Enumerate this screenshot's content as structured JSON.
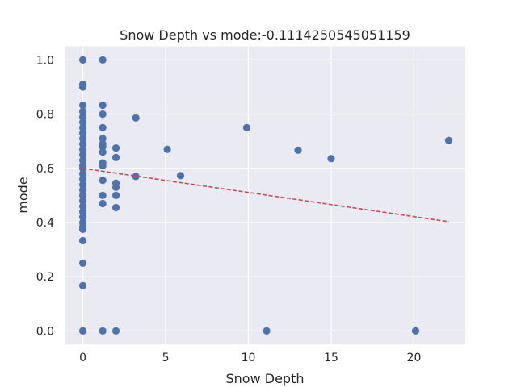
{
  "chart_data": {
    "type": "scatter",
    "title": "Snow Depth vs mode:-0.1114250545051159",
    "xlabel": "Snow Depth",
    "ylabel": "mode",
    "xlim": [
      -1.1,
      23.1
    ],
    "ylim": [
      -0.05,
      1.05
    ],
    "x_ticks": [
      0,
      5,
      10,
      15,
      20
    ],
    "x_tick_labels": [
      "0",
      "5",
      "10",
      "15",
      "20"
    ],
    "y_ticks": [
      0.0,
      0.2,
      0.4,
      0.6,
      0.8,
      1.0
    ],
    "y_tick_labels": [
      "0.0",
      "0.2",
      "0.4",
      "0.6",
      "0.8",
      "1.0"
    ],
    "grid": true,
    "background_color": "#eaeaf2",
    "grid_color": "#ffffff",
    "point_color": "#4c72b0",
    "trend_color": "#c44e52",
    "points": [
      {
        "x": 0,
        "y": 1.0
      },
      {
        "x": 0,
        "y": 0.91
      },
      {
        "x": 0,
        "y": 0.9
      },
      {
        "x": 0,
        "y": 0.833
      },
      {
        "x": 0,
        "y": 0.81
      },
      {
        "x": 0,
        "y": 0.79
      },
      {
        "x": 0,
        "y": 0.77
      },
      {
        "x": 0,
        "y": 0.75
      },
      {
        "x": 0,
        "y": 0.73
      },
      {
        "x": 0,
        "y": 0.71
      },
      {
        "x": 0,
        "y": 0.69
      },
      {
        "x": 0,
        "y": 0.67
      },
      {
        "x": 0,
        "y": 0.65
      },
      {
        "x": 0,
        "y": 0.63
      },
      {
        "x": 0,
        "y": 0.61
      },
      {
        "x": 0,
        "y": 0.6
      },
      {
        "x": 0,
        "y": 0.58
      },
      {
        "x": 0,
        "y": 0.56
      },
      {
        "x": 0,
        "y": 0.54
      },
      {
        "x": 0,
        "y": 0.52
      },
      {
        "x": 0,
        "y": 0.5
      },
      {
        "x": 0,
        "y": 0.48
      },
      {
        "x": 0,
        "y": 0.46
      },
      {
        "x": 0,
        "y": 0.44
      },
      {
        "x": 0,
        "y": 0.42
      },
      {
        "x": 0,
        "y": 0.4
      },
      {
        "x": 0,
        "y": 0.385
      },
      {
        "x": 0,
        "y": 0.375
      },
      {
        "x": 0,
        "y": 0.333
      },
      {
        "x": 0,
        "y": 0.25
      },
      {
        "x": 0,
        "y": 0.167
      },
      {
        "x": 0,
        "y": 0.0
      },
      {
        "x": 1.2,
        "y": 1.0
      },
      {
        "x": 1.2,
        "y": 0.833
      },
      {
        "x": 1.2,
        "y": 0.8
      },
      {
        "x": 1.2,
        "y": 0.75
      },
      {
        "x": 1.2,
        "y": 0.71
      },
      {
        "x": 1.2,
        "y": 0.69
      },
      {
        "x": 1.2,
        "y": 0.68
      },
      {
        "x": 1.2,
        "y": 0.66
      },
      {
        "x": 1.2,
        "y": 0.62
      },
      {
        "x": 1.2,
        "y": 0.61
      },
      {
        "x": 1.2,
        "y": 0.556
      },
      {
        "x": 1.2,
        "y": 0.5
      },
      {
        "x": 1.2,
        "y": 0.47
      },
      {
        "x": 1.2,
        "y": 0.0
      },
      {
        "x": 2.0,
        "y": 0.675
      },
      {
        "x": 2.0,
        "y": 0.64
      },
      {
        "x": 2.0,
        "y": 0.545
      },
      {
        "x": 2.0,
        "y": 0.53
      },
      {
        "x": 2.0,
        "y": 0.5
      },
      {
        "x": 2.0,
        "y": 0.455
      },
      {
        "x": 2.0,
        "y": 0.0
      },
      {
        "x": 3.2,
        "y": 0.786
      },
      {
        "x": 3.2,
        "y": 0.57
      },
      {
        "x": 5.1,
        "y": 0.67
      },
      {
        "x": 5.9,
        "y": 0.573
      },
      {
        "x": 9.9,
        "y": 0.75
      },
      {
        "x": 11.1,
        "y": 0.0
      },
      {
        "x": 13.0,
        "y": 0.667
      },
      {
        "x": 15.0,
        "y": 0.636
      },
      {
        "x": 20.1,
        "y": 0.0
      },
      {
        "x": 22.1,
        "y": 0.703
      }
    ],
    "trend_line": {
      "x": [
        0,
        22.1
      ],
      "y": [
        0.6,
        0.403
      ]
    }
  }
}
